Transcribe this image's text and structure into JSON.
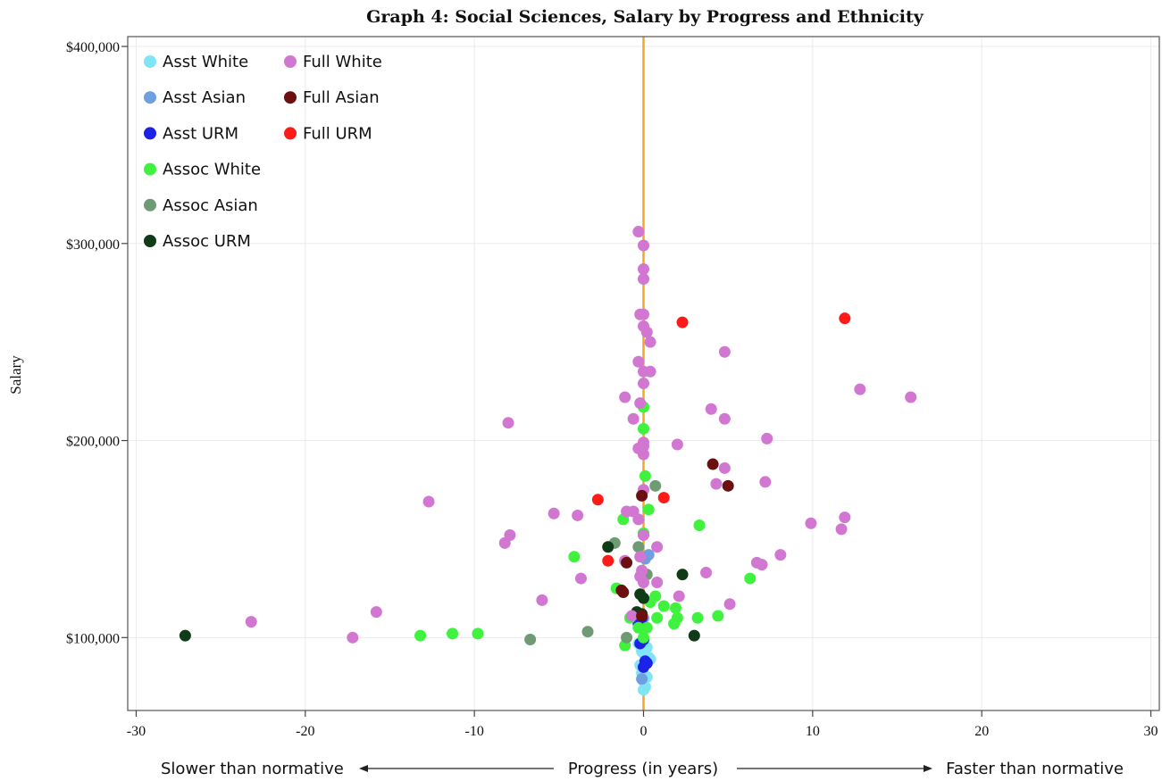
{
  "chart_data": {
    "type": "scatter",
    "title": "Graph 4: Social Sciences, Salary by Progress and Ethnicity",
    "xlabel": "Progress (in years)",
    "xlabel_left": "Slower than normative",
    "xlabel_right": "Faster than normative",
    "ylabel": "Salary",
    "xlim": [
      -30.5,
      30.5
    ],
    "ylim": [
      63000,
      405000
    ],
    "xticks": [
      -30,
      -20,
      -10,
      0,
      10,
      20,
      30
    ],
    "xtick_labels": [
      "-30",
      "-20",
      "-10",
      "0",
      "10",
      "20",
      "30"
    ],
    "yticks": [
      100000,
      200000,
      300000,
      400000
    ],
    "ytick_labels": [
      "$100,000",
      "$200,000",
      "$300,000",
      "$400,000"
    ],
    "grid": true,
    "reference_line": {
      "x": 0,
      "color": "#f5a623"
    },
    "legend_position": "top-left",
    "series": [
      {
        "name": "Asst White",
        "color": "#7fe4f6",
        "points": [
          [
            0.1,
            75000
          ],
          [
            0.0,
            78000
          ],
          [
            -0.1,
            82000
          ],
          [
            0.2,
            80000
          ],
          [
            -0.2,
            86000
          ],
          [
            0.1,
            88000
          ],
          [
            0.3,
            90000
          ],
          [
            -0.1,
            93000
          ],
          [
            0.2,
            95000
          ],
          [
            -0.3,
            97000
          ],
          [
            0.0,
            92000
          ],
          [
            0.4,
            89000
          ],
          [
            0.0,
            73500
          ]
        ]
      },
      {
        "name": "Asst Asian",
        "color": "#6f9fe0",
        "points": [
          [
            -0.1,
            79000
          ],
          [
            0.3,
            142000
          ],
          [
            0.1,
            140000
          ],
          [
            0.0,
            110000
          ]
        ]
      },
      {
        "name": "Asst URM",
        "color": "#1c22e8",
        "points": [
          [
            0.0,
            85000
          ],
          [
            0.2,
            87000
          ],
          [
            0.1,
            88000
          ],
          [
            -0.2,
            97000
          ],
          [
            0.0,
            99000
          ],
          [
            -0.3,
            107000
          ],
          [
            -0.1,
            110000
          ]
        ]
      },
      {
        "name": "Assoc White",
        "color": "#3ef23e",
        "points": [
          [
            0.0,
            217000
          ],
          [
            0.0,
            206000
          ],
          [
            0.1,
            182000
          ],
          [
            0.3,
            165000
          ],
          [
            0.0,
            153000
          ],
          [
            -1.2,
            160000
          ],
          [
            -4.1,
            141000
          ],
          [
            -1.6,
            125000
          ],
          [
            0.7,
            121000
          ],
          [
            0.4,
            118000
          ],
          [
            1.2,
            116000
          ],
          [
            1.9,
            115000
          ],
          [
            2.0,
            110000
          ],
          [
            0.8,
            110000
          ],
          [
            -0.8,
            110000
          ],
          [
            -0.3,
            105000
          ],
          [
            0.2,
            105000
          ],
          [
            0.0,
            100000
          ],
          [
            -1.1,
            96000
          ],
          [
            -13.2,
            101000
          ],
          [
            -11.3,
            102000
          ],
          [
            -9.8,
            102000
          ],
          [
            1.8,
            107000
          ],
          [
            3.2,
            110000
          ],
          [
            4.4,
            111000
          ],
          [
            3.3,
            157000
          ],
          [
            6.3,
            130000
          ]
        ]
      },
      {
        "name": "Assoc Asian",
        "color": "#6e9b74",
        "points": [
          [
            0.7,
            177000
          ],
          [
            -1.7,
            148000
          ],
          [
            -0.3,
            146000
          ],
          [
            0.2,
            132000
          ],
          [
            -3.3,
            103000
          ],
          [
            -6.7,
            99000
          ],
          [
            -1.0,
            100000
          ]
        ]
      },
      {
        "name": "Assoc URM",
        "color": "#0f3b16",
        "points": [
          [
            -27.1,
            101000
          ],
          [
            -2.1,
            146000
          ],
          [
            2.3,
            132000
          ],
          [
            -0.2,
            122000
          ],
          [
            0.0,
            120000
          ],
          [
            -0.1,
            112000
          ],
          [
            -0.4,
            113000
          ],
          [
            3.0,
            101000
          ]
        ]
      },
      {
        "name": "Full White",
        "color": "#d176d1",
        "points": [
          [
            -0.3,
            306000
          ],
          [
            0.0,
            299000
          ],
          [
            0.0,
            287000
          ],
          [
            0.0,
            282000
          ],
          [
            -0.2,
            264000
          ],
          [
            0.0,
            264000
          ],
          [
            0.0,
            258000
          ],
          [
            0.2,
            255000
          ],
          [
            0.4,
            250000
          ],
          [
            4.8,
            245000
          ],
          [
            -0.3,
            240000
          ],
          [
            0.0,
            235000
          ],
          [
            0.4,
            235000
          ],
          [
            0.0,
            229000
          ],
          [
            -1.1,
            222000
          ],
          [
            -0.2,
            219000
          ],
          [
            12.8,
            226000
          ],
          [
            15.8,
            222000
          ],
          [
            4.0,
            216000
          ],
          [
            -0.6,
            211000
          ],
          [
            4.8,
            211000
          ],
          [
            -8.0,
            209000
          ],
          [
            7.3,
            201000
          ],
          [
            0.0,
            199000
          ],
          [
            0.0,
            197000
          ],
          [
            2.0,
            198000
          ],
          [
            -0.3,
            196000
          ],
          [
            0.0,
            193000
          ],
          [
            4.8,
            186000
          ],
          [
            4.3,
            178000
          ],
          [
            7.2,
            179000
          ],
          [
            0.0,
            175000
          ],
          [
            -12.7,
            169000
          ],
          [
            -5.3,
            163000
          ],
          [
            -3.9,
            162000
          ],
          [
            -1.0,
            164000
          ],
          [
            -0.6,
            164000
          ],
          [
            11.9,
            161000
          ],
          [
            -0.3,
            160000
          ],
          [
            9.9,
            158000
          ],
          [
            11.7,
            155000
          ],
          [
            -7.9,
            152000
          ],
          [
            0.0,
            152000
          ],
          [
            -8.2,
            148000
          ],
          [
            0.8,
            146000
          ],
          [
            8.1,
            142000
          ],
          [
            -0.2,
            141000
          ],
          [
            -1.1,
            139000
          ],
          [
            6.7,
            138000
          ],
          [
            7.0,
            137000
          ],
          [
            -0.1,
            134000
          ],
          [
            3.7,
            133000
          ],
          [
            -3.7,
            130000
          ],
          [
            -0.2,
            131000
          ],
          [
            0.8,
            128000
          ],
          [
            0.0,
            128000
          ],
          [
            -6.0,
            119000
          ],
          [
            2.1,
            121000
          ],
          [
            5.1,
            117000
          ],
          [
            -15.8,
            113000
          ],
          [
            -0.7,
            111000
          ],
          [
            -23.2,
            108000
          ],
          [
            -17.2,
            100000
          ]
        ]
      },
      {
        "name": "Full Asian",
        "color": "#6b0f10",
        "points": [
          [
            4.1,
            188000
          ],
          [
            5.0,
            177000
          ],
          [
            -0.1,
            172000
          ],
          [
            -1.0,
            138000
          ],
          [
            -1.3,
            124000
          ],
          [
            -1.2,
            123000
          ],
          [
            -0.1,
            111000
          ]
        ]
      },
      {
        "name": "Full URM",
        "color": "#ff1a1a",
        "points": [
          [
            2.3,
            260000
          ],
          [
            11.9,
            262000
          ],
          [
            -2.7,
            170000
          ],
          [
            1.2,
            171000
          ],
          [
            -2.1,
            139000
          ]
        ]
      }
    ]
  }
}
